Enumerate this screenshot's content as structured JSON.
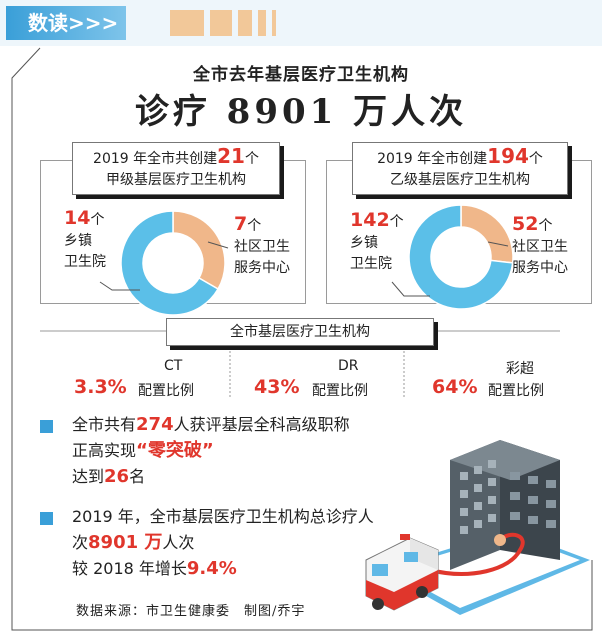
{
  "header": {
    "tag": "数读>>>"
  },
  "title": {
    "line1": "全市去年基层医疗卫生机构",
    "line2": "诊疗 8901 万人次"
  },
  "chart_data": [
    {
      "type": "pie",
      "title_pre": "2019 年全市共创建",
      "title_num": "21",
      "title_post": "个",
      "title_line2": "甲级基层医疗卫生机构",
      "slices": [
        {
          "label_num": "14",
          "unit": "个",
          "label_lines": [
            "乡镇",
            "卫生院"
          ],
          "value": 14,
          "color": "#5bbfe8"
        },
        {
          "label_num": "7",
          "unit": "个",
          "label_lines": [
            "社区卫生",
            "服务中心"
          ],
          "value": 7,
          "color": "#f0b78a"
        }
      ]
    },
    {
      "type": "pie",
      "title_pre": "2019 年全市创建",
      "title_num": "194",
      "title_post": "个",
      "title_line2": "乙级基层医疗卫生机构",
      "slices": [
        {
          "label_num": "142",
          "unit": "个",
          "label_lines": [
            "乡镇",
            "卫生院"
          ],
          "value": 142,
          "color": "#5bbfe8"
        },
        {
          "label_num": "52",
          "unit": "个",
          "label_lines": [
            "社区卫生",
            "服务中心"
          ],
          "value": 52,
          "color": "#f0b78a"
        }
      ]
    }
  ],
  "ratios": {
    "heading": "全市基层医疗卫生机构",
    "items": [
      {
        "device": "CT",
        "value": "3.3%",
        "label": "配置比例"
      },
      {
        "device": "DR",
        "value": "43%",
        "label": "配置比例"
      },
      {
        "device": "彩超",
        "value": "64%",
        "label": "配置比例"
      }
    ]
  },
  "bullets": [
    {
      "l1_pre": "全市共有",
      "l1_num": "274",
      "l1_post": "人获评基层全科高级职称",
      "l2_pre": "正高实现",
      "l2_em": "“零突破”",
      "l3_pre": "达到",
      "l3_num": "26",
      "l3_post": "名"
    },
    {
      "l1": "2019 年，全市基层医疗卫生机构总诊疗人",
      "l2_pre": "次",
      "l2_num": "8901 万",
      "l2_post": "人次",
      "l3_pre": "较 2018 年增长",
      "l3_num": "9.4%"
    }
  ],
  "source": "数据来源：市卫生健康委　制图/乔宇",
  "colors": {
    "accent_blue": "#3a9fd8",
    "ring_blue": "#5bbfe8",
    "ring_orange": "#f0b78a",
    "highlight_red": "#e0362c"
  }
}
